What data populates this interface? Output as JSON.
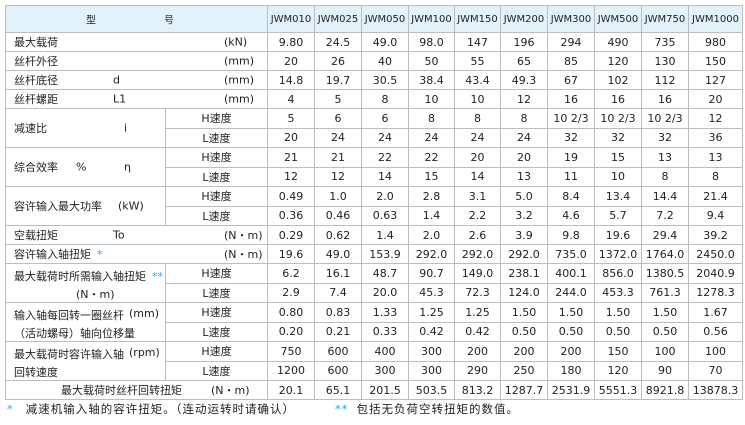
{
  "header": {
    "label_left": "型",
    "label_right": "号",
    "models": [
      "JWM010",
      "JWM025",
      "JWM050",
      "JWM100",
      "JWM150",
      "JWM200",
      "JWM300",
      "JWM500",
      "JWM750",
      "JWM1000"
    ]
  },
  "rows": [
    {
      "type": "single",
      "label": "最大载荷",
      "symbol": "",
      "unit": "(kN)",
      "values": [
        "9.80",
        "24.5",
        "49.0",
        "98.0",
        "147",
        "196",
        "294",
        "490",
        "735",
        "980"
      ]
    },
    {
      "type": "single",
      "label": "丝杆外径",
      "symbol": "",
      "unit": "(mm)",
      "values": [
        "20",
        "26",
        "40",
        "50",
        "55",
        "65",
        "85",
        "120",
        "130",
        "150"
      ]
    },
    {
      "type": "single",
      "label": "丝杆底径",
      "symbol": "d",
      "unit": "(mm)",
      "values": [
        "14.8",
        "19.7",
        "30.5",
        "38.4",
        "43.4",
        "49.3",
        "67",
        "102",
        "112",
        "127"
      ]
    },
    {
      "type": "single",
      "label": "丝杆螺距",
      "symbol": "L1",
      "unit": "(mm)",
      "values": [
        "4",
        "5",
        "8",
        "10",
        "10",
        "12",
        "16",
        "16",
        "16",
        "20"
      ]
    },
    {
      "type": "pair",
      "label": "减速比",
      "symbol": "i",
      "unit": "",
      "label2": "",
      "sub": [
        {
          "speed": "H速度",
          "values": [
            "5",
            "6",
            "6",
            "8",
            "8",
            "8",
            "10 2/3",
            "10 2/3",
            "10 2/3",
            "12"
          ]
        },
        {
          "speed": "L速度",
          "values": [
            "20",
            "24",
            "24",
            "24",
            "24",
            "24",
            "32",
            "32",
            "32",
            "36"
          ]
        }
      ]
    },
    {
      "type": "pair",
      "label": "综合效率",
      "pct": "%",
      "symbol": "η",
      "unit": "",
      "label2": "",
      "sub": [
        {
          "speed": "H速度",
          "values": [
            "21",
            "21",
            "22",
            "22",
            "20",
            "20",
            "19",
            "15",
            "13",
            "13"
          ]
        },
        {
          "speed": "L速度",
          "values": [
            "12",
            "12",
            "14",
            "15",
            "14",
            "13",
            "11",
            "10",
            "8",
            "8"
          ]
        }
      ]
    },
    {
      "type": "pair",
      "label": "容许输入最大功率",
      "symbol": "",
      "unit": "(kW)",
      "label2": "",
      "sub": [
        {
          "speed": "H速度",
          "values": [
            "0.49",
            "1.0",
            "2.0",
            "2.8",
            "3.1",
            "5.0",
            "8.4",
            "13.4",
            "14.4",
            "21.4"
          ]
        },
        {
          "speed": "L速度",
          "values": [
            "0.36",
            "0.46",
            "0.63",
            "1.4",
            "2.2",
            "3.2",
            "4.6",
            "5.7",
            "7.2",
            "9.4"
          ]
        }
      ]
    },
    {
      "type": "single",
      "label": "空载扭矩",
      "symbol": "To",
      "unit": "(N・m)",
      "values": [
        "0.29",
        "0.62",
        "1.4",
        "2.0",
        "2.6",
        "3.9",
        "9.8",
        "19.6",
        "29.4",
        "39.2"
      ]
    },
    {
      "type": "single",
      "label": "容许输入轴扭矩",
      "mark": "*",
      "symbol": "",
      "unit": "(N・m)",
      "values": [
        "19.6",
        "49.0",
        "153.9",
        "292.0",
        "292.0",
        "292.0",
        "735.0",
        "1372.0",
        "1764.0",
        "2450.0"
      ]
    },
    {
      "type": "pair",
      "label": "最大载荷时所需输入轴扭矩",
      "mark": "**",
      "symbol": "",
      "unit": "",
      "label2": "(N・m)",
      "sub": [
        {
          "speed": "H速度",
          "values": [
            "6.2",
            "16.1",
            "48.7",
            "90.7",
            "149.0",
            "238.1",
            "400.1",
            "856.0",
            "1380.5",
            "2040.9"
          ]
        },
        {
          "speed": "L速度",
          "values": [
            "2.9",
            "7.4",
            "20.0",
            "45.3",
            "72.3",
            "124.0",
            "244.0",
            "453.3",
            "761.3",
            "1278.3"
          ]
        }
      ]
    },
    {
      "type": "pair",
      "label": "输入轴每回转一圈丝杆",
      "symbol": "",
      "unit": "(mm)",
      "label2": "（活动螺母）轴向位移量",
      "sub": [
        {
          "speed": "H速度",
          "values": [
            "0.80",
            "0.83",
            "1.33",
            "1.25",
            "1.25",
            "1.50",
            "1.50",
            "1.50",
            "1.50",
            "1.67"
          ]
        },
        {
          "speed": "L速度",
          "values": [
            "0.20",
            "0.21",
            "0.33",
            "0.42",
            "0.42",
            "0.50",
            "0.50",
            "0.50",
            "0.50",
            "0.56"
          ]
        }
      ]
    },
    {
      "type": "pair",
      "label": "最大载荷时容许输入轴",
      "symbol": "",
      "unit": "(rpm)",
      "label2": "回转速度",
      "sub": [
        {
          "speed": "H速度",
          "values": [
            "750",
            "600",
            "400",
            "300",
            "200",
            "200",
            "200",
            "150",
            "100",
            "100"
          ]
        },
        {
          "speed": "L速度",
          "values": [
            "1200",
            "600",
            "300",
            "300",
            "290",
            "250",
            "180",
            "120",
            "90",
            "70"
          ]
        }
      ]
    },
    {
      "type": "total",
      "label": "最大载荷时丝杆回转扭矩",
      "unit": "(N・m)",
      "values": [
        "20.1",
        "65.1",
        "201.5",
        "503.5",
        "813.2",
        "1287.7",
        "2531.9",
        "5551.3",
        "8921.8",
        "13878.3"
      ]
    }
  ],
  "footnotes": [
    {
      "mark": "*",
      "text": "减速机输入轴的容许扭矩。（连动运转时请确认）"
    },
    {
      "mark": "**",
      "text": "包括无负荷空转扭矩的数值。"
    }
  ],
  "colors": {
    "header_bg": "#e2f1fa",
    "border": "#b9bec3",
    "mark": "#29a9e0"
  }
}
